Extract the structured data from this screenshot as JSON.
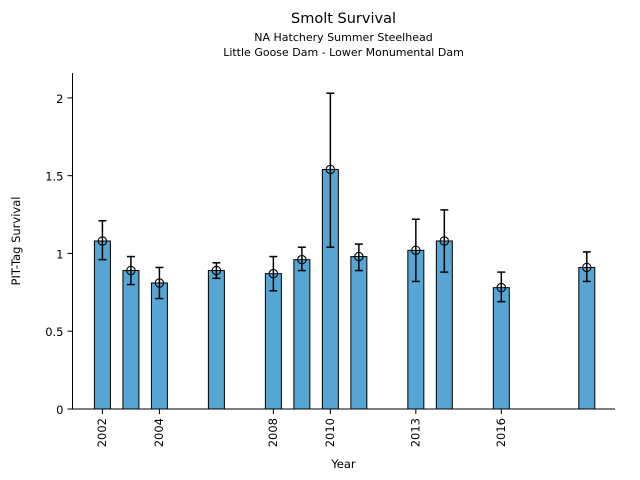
{
  "header": {
    "title": "Smolt Survival",
    "subtitle1": "NA Hatchery Summer Steelhead",
    "subtitle2": "Little Goose Dam - Lower Monumental Dam"
  },
  "chart_data": {
    "type": "bar",
    "title": "Smolt Survival",
    "subtitle": [
      "NA Hatchery Summer Steelhead",
      "Little Goose Dam - Lower Monumental Dam"
    ],
    "xlabel": "Year",
    "ylabel": "PIT-Tag Survival",
    "categories": [
      2002,
      2003,
      2004,
      2006,
      2008,
      2009,
      2010,
      2011,
      2013,
      2014,
      2016,
      2019
    ],
    "values": [
      1.08,
      0.89,
      0.81,
      0.89,
      0.87,
      0.96,
      1.54,
      0.98,
      1.02,
      1.08,
      0.78,
      0.91
    ],
    "error_low": [
      0.96,
      0.8,
      0.71,
      0.84,
      0.76,
      0.89,
      1.04,
      0.89,
      0.82,
      0.88,
      0.69,
      0.82
    ],
    "error_high": [
      1.21,
      0.98,
      0.91,
      0.94,
      0.98,
      1.04,
      2.03,
      1.06,
      1.22,
      1.28,
      0.88,
      1.01
    ],
    "x_tick_years": [
      2002,
      2004,
      2008,
      2010,
      2013,
      2016
    ],
    "x_tick_labels": [
      "2002",
      "2004",
      "2008",
      "2010",
      "2013",
      "2016"
    ],
    "y_ticks": [
      0,
      0.5,
      1,
      1.5,
      2
    ],
    "y_tick_labels": [
      "0",
      "0.5",
      "1",
      "1.5",
      "2"
    ],
    "xlim": [
      2000.95,
      2019.99
    ],
    "ylim": [
      0,
      2.16
    ],
    "bar_color": "#56A5D2",
    "edge_color": "#000000",
    "axis_color": "#000000",
    "grid": false,
    "legend": false,
    "error_bars": true,
    "marker": "open-circle"
  }
}
